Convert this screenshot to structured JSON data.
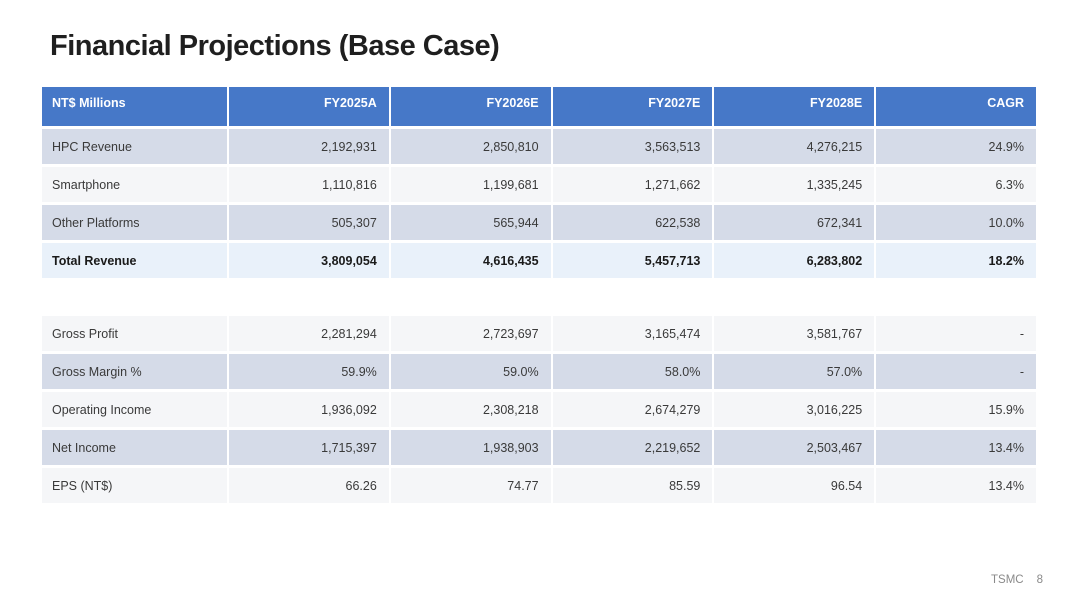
{
  "slide": {
    "title": "Financial Projections (Base Case)",
    "footer": {
      "brand": "TSMC",
      "page_number": "8"
    }
  },
  "table": {
    "columns": [
      "NT$ Millions",
      "FY2025A",
      "FY2026E",
      "FY2027E",
      "FY2028E",
      "CAGR"
    ],
    "revenue_section": [
      {
        "label": "HPC Revenue",
        "values": [
          "2,192,931",
          "2,850,810",
          "3,563,513",
          "4,276,215",
          "24.9%"
        ],
        "style": "band"
      },
      {
        "label": "Smartphone",
        "values": [
          "1,110,816",
          "1,199,681",
          "1,271,662",
          "1,335,245",
          "6.3%"
        ],
        "style": "plain"
      },
      {
        "label": "Other Platforms",
        "values": [
          "505,307",
          "565,944",
          "622,538",
          "672,341",
          "10.0%"
        ],
        "style": "band"
      },
      {
        "label": "Total Revenue",
        "values": [
          "3,809,054",
          "4,616,435",
          "5,457,713",
          "6,283,802",
          "18.2%"
        ],
        "style": "total"
      }
    ],
    "profit_section": [
      {
        "label": "Gross Profit",
        "values": [
          "2,281,294",
          "2,723,697",
          "3,165,474",
          "3,581,767",
          "-"
        ],
        "style": "plain"
      },
      {
        "label": "Gross Margin %",
        "values": [
          "59.9%",
          "59.0%",
          "58.0%",
          "57.0%",
          "-"
        ],
        "style": "band"
      },
      {
        "label": "Operating Income",
        "values": [
          "1,936,092",
          "2,308,218",
          "2,674,279",
          "3,016,225",
          "15.9%"
        ],
        "style": "plain"
      },
      {
        "label": "Net Income",
        "values": [
          "1,715,397",
          "1,938,903",
          "2,219,652",
          "2,503,467",
          "13.4%"
        ],
        "style": "band"
      },
      {
        "label": "EPS (NT$)",
        "values": [
          "66.26",
          "74.77",
          "85.59",
          "96.54",
          "13.4%"
        ],
        "style": "plain"
      }
    ]
  },
  "colors": {
    "header_bg": "#4678c8",
    "header_text": "#ffffff",
    "band_row_bg": "#d5dbe8",
    "plain_row_bg": "#f5f6f8",
    "total_row_bg": "#e9f1fa",
    "body_text": "#3a3a3a",
    "title_text": "#1f1f1f",
    "footer_text": "#8a8a8a"
  }
}
